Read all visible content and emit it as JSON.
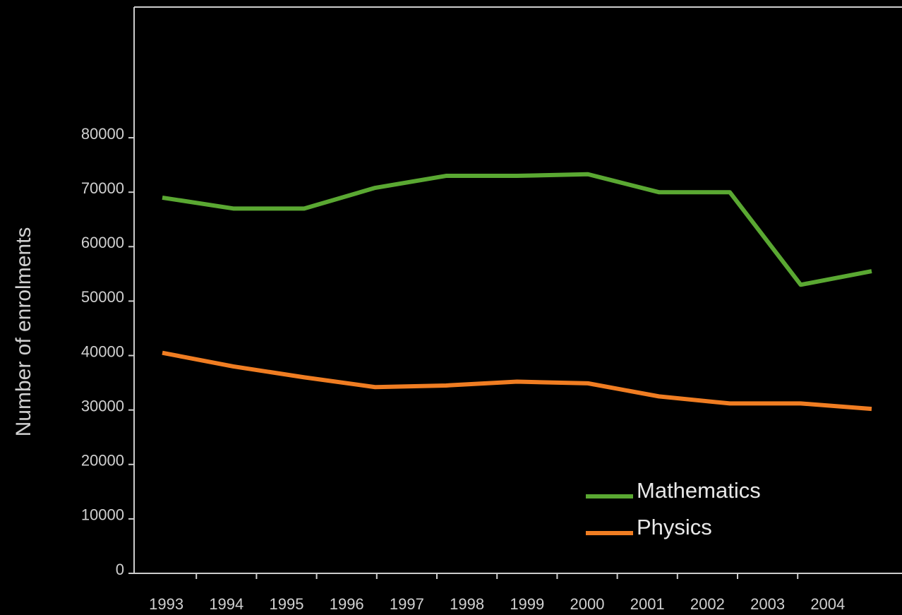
{
  "chart_data": {
    "type": "line",
    "y_label": "Number of enrolments",
    "categories": [
      "1993",
      "1994",
      "1995",
      "1996",
      "1997",
      "1998",
      "1999",
      "2000",
      "2001",
      "2002",
      "2003",
      "2004"
    ],
    "series": [
      {
        "name": "Mathematics",
        "color": "#5aa832",
        "values": [
          69000,
          67000,
          67000,
          70800,
          73000,
          73000,
          73300,
          70000,
          70000,
          53000,
          55500,
          null
        ]
      },
      {
        "name": "Physics",
        "color": "#f07d22",
        "values": [
          40500,
          38000,
          36000,
          34200,
          34500,
          35200,
          34900,
          32500,
          31200,
          31200,
          30200,
          null
        ]
      }
    ],
    "ylim": [
      0,
      104000
    ],
    "yticks": [
      0,
      10000,
      20000,
      30000,
      40000,
      50000,
      60000,
      70000,
      80000
    ],
    "legend": "lower right"
  }
}
